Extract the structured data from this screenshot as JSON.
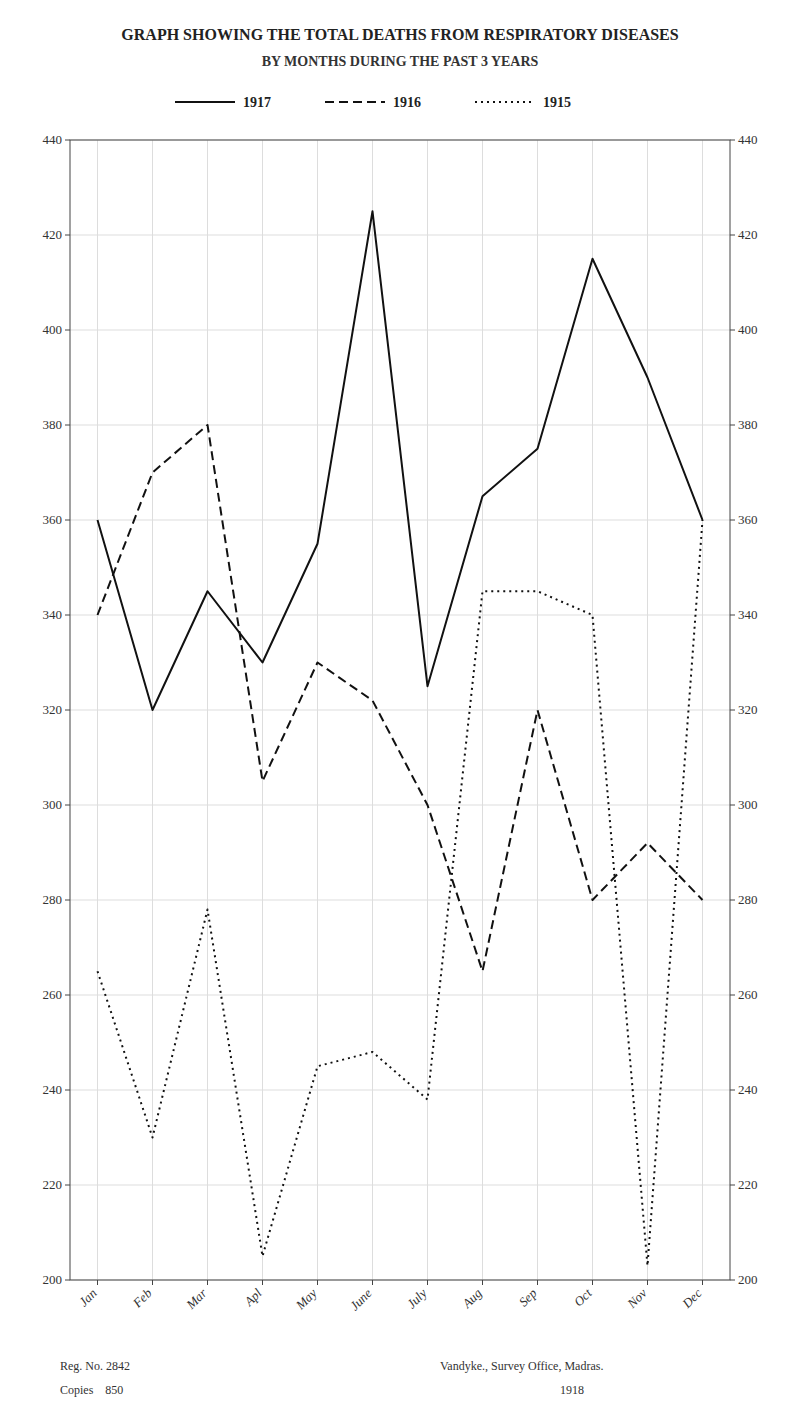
{
  "chart_data": {
    "type": "line",
    "title": "GRAPH SHOWING THE TOTAL DEATHS FROM RESPIRATORY DISEASES",
    "subtitle": "BY MONTHS DURING THE PAST 3 YEARS",
    "categories": [
      "Jan",
      "Feb",
      "Mar",
      "Apl",
      "May",
      "June",
      "July",
      "Aug",
      "Sep",
      "Oct",
      "Nov",
      "Dec"
    ],
    "series": [
      {
        "name": "1917",
        "color": "#111111",
        "line_style": "solid",
        "values": [
          360,
          320,
          345,
          330,
          355,
          425,
          325,
          365,
          375,
          415,
          390,
          360
        ]
      },
      {
        "name": "1916",
        "color": "#111111",
        "line_style": "dashed",
        "values": [
          340,
          370,
          380,
          305,
          330,
          322,
          300,
          265,
          320,
          280,
          292,
          280
        ]
      },
      {
        "name": "1915",
        "color": "#111111",
        "line_style": "dotted",
        "values": [
          265,
          230,
          278,
          205,
          245,
          248,
          238,
          345,
          345,
          340,
          203,
          360
        ]
      }
    ],
    "ylim": [
      200,
      440
    ],
    "yticks": [
      200,
      220,
      240,
      260,
      280,
      300,
      320,
      340,
      360,
      380,
      400,
      420,
      440
    ],
    "y2lim": [
      200,
      440
    ],
    "y2ticks": [
      200,
      220,
      240,
      260,
      280,
      300,
      320,
      340,
      360,
      380,
      400,
      420,
      440
    ],
    "grid": true,
    "legend": "top",
    "annotations": [
      "Reg. No. 2842",
      "Copies    850",
      "Vandyke., Survey Office, Madras.",
      "1918"
    ]
  }
}
